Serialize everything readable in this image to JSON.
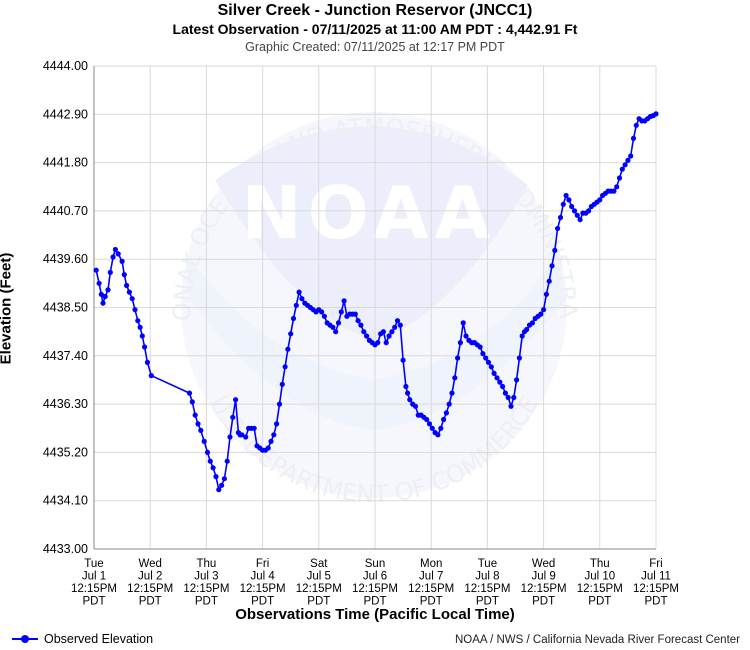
{
  "header": {
    "title": "Silver Creek - Junction Reservor (JNCC1)",
    "subtitle": "Latest Observation - 07/11/2025 at 11:00 AM PDT : 4,442.91 Ft",
    "created": "Graphic Created: 07/11/2025 at 12:17 PM PDT"
  },
  "footer": {
    "legend_label": "Observed Elevation",
    "credit": "NOAA / NWS / California Nevada River Forecast Center"
  },
  "watermark": {
    "logo_text": "NOAA",
    "ring_top": "NATIONAL OCEANIC AND ATMOSPHERIC ADMINISTRATION",
    "ring_bottom": "U.S. DEPARTMENT OF COMMERCE"
  },
  "colors": {
    "series": "#0000ff",
    "grid": "#d9d9d9",
    "watermark": "#eef0fb"
  },
  "chart_data": {
    "type": "line",
    "xlabel": "Observations Time (Pacific Local Time)",
    "ylabel": "Elevation (Feet)",
    "ylim": [
      4433.0,
      4444.0
    ],
    "yticks": [
      "4444.00",
      "4442.90",
      "4441.80",
      "4440.70",
      "4439.60",
      "4438.50",
      "4437.40",
      "4436.30",
      "4435.20",
      "4434.10",
      "4433.00"
    ],
    "xlim": [
      0,
      10
    ],
    "xticks": [
      {
        "day": "Tue",
        "date": "Jul 1",
        "time": "12:15PM",
        "tz": "PDT"
      },
      {
        "day": "Wed",
        "date": "Jul 2",
        "time": "12:15PM",
        "tz": "PDT"
      },
      {
        "day": "Thu",
        "date": "Jul 3",
        "time": "12:15PM",
        "tz": "PDT"
      },
      {
        "day": "Fri",
        "date": "Jul 4",
        "time": "12:15PM",
        "tz": "PDT"
      },
      {
        "day": "Sat",
        "date": "Jul 5",
        "time": "12:15PM",
        "tz": "PDT"
      },
      {
        "day": "Sun",
        "date": "Jul 6",
        "time": "12:15PM",
        "tz": "PDT"
      },
      {
        "day": "Mon",
        "date": "Jul 7",
        "time": "12:15PM",
        "tz": "PDT"
      },
      {
        "day": "Tue",
        "date": "Jul 8",
        "time": "12:15PM",
        "tz": "PDT"
      },
      {
        "day": "Wed",
        "date": "Jul 9",
        "time": "12:15PM",
        "tz": "PDT"
      },
      {
        "day": "Thu",
        "date": "Jul 10",
        "time": "12:15PM",
        "tz": "PDT"
      },
      {
        "day": "Fri",
        "date": "Jul 11",
        "time": "12:15PM",
        "tz": "PDT"
      }
    ],
    "grid": true,
    "legend_position": "bottom-left",
    "series": [
      {
        "name": "Observed Elevation",
        "x": [
          0.04,
          0.09,
          0.13,
          0.16,
          0.2,
          0.25,
          0.29,
          0.34,
          0.38,
          0.43,
          0.5,
          0.54,
          0.58,
          0.63,
          0.68,
          0.73,
          0.78,
          0.82,
          0.86,
          0.9,
          0.95,
          1.02,
          1.7,
          1.75,
          1.8,
          1.85,
          1.9,
          1.96,
          2.02,
          2.07,
          2.12,
          2.17,
          2.22,
          2.27,
          2.32,
          2.37,
          2.42,
          2.47,
          2.52,
          2.57,
          2.6,
          2.63,
          2.7,
          2.75,
          2.8,
          2.85,
          2.9,
          2.95,
          3.0,
          3.05,
          3.1,
          3.15,
          3.2,
          3.25,
          3.3,
          3.35,
          3.4,
          3.45,
          3.5,
          3.55,
          3.6,
          3.65,
          3.7,
          3.75,
          3.8,
          3.85,
          3.9,
          3.95,
          4.0,
          4.05,
          4.1,
          4.15,
          4.2,
          4.25,
          4.3,
          4.35,
          4.4,
          4.45,
          4.5,
          4.55,
          4.6,
          4.65,
          4.7,
          4.75,
          4.8,
          4.85,
          4.9,
          4.95,
          5.0,
          5.05,
          5.1,
          5.15,
          5.2,
          5.25,
          5.3,
          5.35,
          5.4,
          5.45,
          5.5,
          5.55,
          5.58,
          5.62,
          5.67,
          5.72,
          5.77,
          5.82,
          5.87,
          5.92,
          5.97,
          6.02,
          6.07,
          6.12,
          6.17,
          6.22,
          6.27,
          6.32,
          6.37,
          6.42,
          6.47,
          6.52,
          6.57,
          6.62,
          6.67,
          6.72,
          6.77,
          6.82,
          6.87,
          6.92,
          6.97,
          7.02,
          7.07,
          7.12,
          7.17,
          7.22,
          7.27,
          7.32,
          7.37,
          7.42,
          7.47,
          7.52,
          7.57,
          7.62,
          7.66,
          7.7,
          7.75,
          7.8,
          7.85,
          7.9,
          7.95,
          8.0,
          8.05,
          8.1,
          8.15,
          8.2,
          8.25,
          8.3,
          8.35,
          8.4,
          8.45,
          8.5,
          8.55,
          8.6,
          8.65,
          8.7,
          8.75,
          8.8,
          8.85,
          8.9,
          8.95,
          9.0,
          9.05,
          9.1,
          9.15,
          9.2,
          9.25,
          9.3,
          9.35,
          9.4,
          9.45,
          9.5,
          9.55,
          9.6,
          9.65,
          9.7,
          9.75,
          9.8,
          9.85,
          9.9,
          9.95,
          10.0
        ],
        "y": [
          4439.35,
          4439.05,
          4438.8,
          4438.6,
          4438.75,
          4438.9,
          4439.3,
          4439.65,
          4439.82,
          4439.72,
          4439.55,
          4439.25,
          4439.0,
          4438.85,
          4438.7,
          4438.45,
          4438.2,
          4438.05,
          4437.85,
          4437.6,
          4437.25,
          4436.95,
          4436.55,
          4436.35,
          4436.05,
          4435.85,
          4435.7,
          4435.45,
          4435.2,
          4435.0,
          4434.85,
          4434.65,
          4434.35,
          4434.45,
          4434.6,
          4435.0,
          4435.55,
          4436.0,
          4436.4,
          4435.65,
          4435.6,
          4435.6,
          4435.55,
          4435.75,
          4435.75,
          4435.75,
          4435.35,
          4435.3,
          4435.25,
          4435.25,
          4435.3,
          4435.45,
          4435.6,
          4435.85,
          4436.3,
          4436.75,
          4437.15,
          4437.55,
          4437.9,
          4438.25,
          4438.55,
          4438.85,
          4438.7,
          4438.6,
          4438.55,
          4438.5,
          4438.45,
          4438.4,
          4438.45,
          4438.4,
          4438.3,
          4438.15,
          4438.1,
          4438.05,
          4437.95,
          4438.15,
          4438.4,
          4438.65,
          4438.3,
          4438.35,
          4438.35,
          4438.35,
          4438.2,
          4438.1,
          4437.95,
          4437.85,
          4437.75,
          4437.7,
          4437.65,
          4437.7,
          4437.9,
          4437.95,
          4437.7,
          4437.85,
          4437.95,
          4438.05,
          4438.2,
          4438.1,
          4437.3,
          4436.7,
          4436.55,
          4436.4,
          4436.3,
          4436.25,
          4436.05,
          4436.05,
          4436.0,
          4435.95,
          4435.85,
          4435.75,
          4435.65,
          4435.6,
          4435.75,
          4435.95,
          4436.1,
          4436.3,
          4436.55,
          4436.9,
          4437.35,
          4437.7,
          4438.15,
          4437.85,
          4437.75,
          4437.7,
          4437.7,
          4437.65,
          4437.6,
          4437.45,
          4437.35,
          4437.25,
          4437.15,
          4437.0,
          4436.9,
          4436.8,
          4436.7,
          4436.55,
          4436.45,
          4436.25,
          4436.45,
          4436.85,
          4437.35,
          4437.85,
          4437.95,
          4438.0,
          4438.1,
          4438.15,
          4438.25,
          4438.3,
          4438.35,
          4438.45,
          4438.8,
          4439.1,
          4439.45,
          4439.8,
          4440.3,
          4440.55,
          4440.85,
          4441.05,
          4440.95,
          4440.8,
          4440.7,
          4440.6,
          4440.5,
          4440.65,
          4440.65,
          4440.7,
          4440.8,
          4440.85,
          4440.9,
          4440.95,
          4441.05,
          4441.1,
          4441.15,
          4441.15,
          4441.15,
          4441.25,
          4441.45,
          4441.65,
          4441.75,
          4441.85,
          4441.95,
          4442.35,
          4442.65,
          4442.8,
          4442.75,
          4442.75,
          4442.8,
          4442.85,
          4442.87,
          4442.91
        ]
      }
    ]
  }
}
